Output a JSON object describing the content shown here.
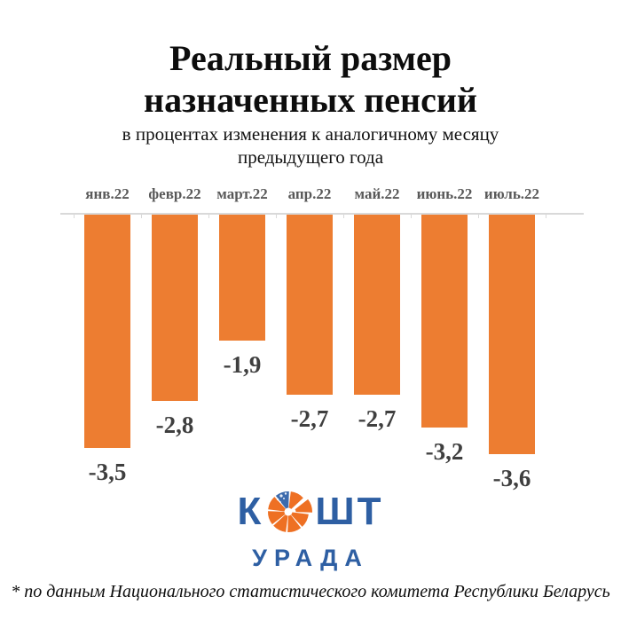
{
  "title": {
    "line1": "Реальный размер",
    "line2": "назначенных пенсий"
  },
  "subtitle": {
    "line1": "в процентах изменения к аналогичному месяцу",
    "line2": "предыдущего года"
  },
  "chart_data": {
    "type": "bar",
    "title": "Реальный размер назначенных пенсий",
    "subtitle": "в процентах изменения к аналогичному месяцу предыдущего года",
    "categories": [
      "янв.22",
      "февр.22",
      "март.22",
      "апр.22",
      "май.22",
      "июнь.22",
      "июль.22"
    ],
    "values": [
      -3.5,
      -2.8,
      -1.9,
      -2.7,
      -2.7,
      -3.2,
      -3.6
    ],
    "value_labels": [
      "-3,5",
      "-2,8",
      "-1,9",
      "-2,7",
      "-2,7",
      "-3,2",
      "-3,6"
    ],
    "xlabel": "",
    "ylabel": "",
    "ylim": [
      -4,
      0
    ],
    "grid": false,
    "legend": false,
    "bar_color": "#ED7D31",
    "value_label_color": "#3f3f3f",
    "category_label_color": "#595959",
    "axis_color": "#d9d9d9"
  },
  "logo": {
    "letters_before_coin": "К",
    "letters_after_coin": "ШТ",
    "line2": "УРАДА",
    "blue": "#2E5FA3",
    "orange": "#EE7023",
    "coin_icon": "orange-pie-coin-icon"
  },
  "footnote": "* по данным Национального статистического комитета Республики Беларусь"
}
